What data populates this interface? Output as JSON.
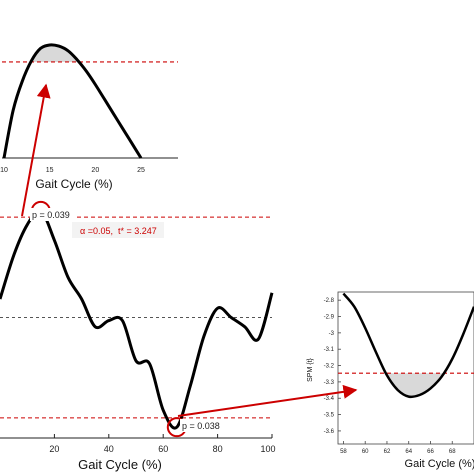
{
  "colors": {
    "curve": "#000000",
    "threshold": "#cc0000",
    "zero_line": "#555555",
    "shade": "#d9d9d9",
    "annotation": "#cc0000"
  },
  "chart_data": [
    {
      "type": "line",
      "name_of_panel": "inset-top",
      "xlabel": "Gait Cycle (%)",
      "ylabel": "",
      "xlim": [
        10,
        25
      ],
      "ylim": [
        0,
        1
      ],
      "xticks": [
        "10",
        "15",
        "20",
        "25"
      ],
      "threshold": 0.85,
      "series": [
        {
          "x": [
            10,
            11,
            12,
            13,
            14,
            15,
            16,
            17,
            18,
            19,
            20,
            21,
            22,
            23,
            24,
            25
          ],
          "y": [
            0.0,
            0.42,
            0.68,
            0.86,
            0.97,
            1.0,
            0.99,
            0.95,
            0.87,
            0.77,
            0.65,
            0.52,
            0.39,
            0.26,
            0.13,
            0.0
          ]
        }
      ]
    },
    {
      "type": "line",
      "name_of_panel": "main",
      "xlabel": "Gait Cycle (%)",
      "ylabel": "",
      "xlim": [
        0,
        100
      ],
      "ylim": [
        -3.9,
        3.9
      ],
      "xticks": [
        "20",
        "40",
        "60",
        "80",
        "100"
      ],
      "threshold_upper": 3.247,
      "threshold_lower": -3.247,
      "annotations": {
        "p_upper": "p = 0.039",
        "p_lower": "p = 0.038",
        "alpha": "α =0.05,",
        "tstar": "t* = 3.247"
      },
      "series": [
        {
          "x": [
            0,
            5,
            10,
            15,
            20,
            25,
            30,
            35,
            40,
            45,
            50,
            55,
            60,
            65,
            70,
            75,
            80,
            85,
            90,
            95,
            100
          ],
          "y": [
            0.6,
            2.0,
            3.0,
            3.45,
            2.5,
            1.3,
            0.6,
            -0.3,
            -0.1,
            -0.1,
            -1.4,
            -1.5,
            -3.0,
            -3.55,
            -2.2,
            -0.6,
            0.3,
            0.0,
            -0.3,
            -0.7,
            0.8
          ]
        }
      ]
    },
    {
      "type": "line",
      "name_of_panel": "inset-bottom-right",
      "xlabel": "Gait Cycle (%)",
      "ylabel": "SPM {t}",
      "xlim": [
        57.5,
        70
      ],
      "ylim": [
        -3.68,
        -2.75
      ],
      "xticks": [
        "58",
        "60",
        "62",
        "64",
        "66",
        "68"
      ],
      "yticks": [
        "-2.8",
        "-2.9",
        "-3",
        "-3.1",
        "-3.2",
        "-3.3",
        "-3.4",
        "-3.5",
        "-3.6"
      ],
      "threshold": -3.247,
      "series": [
        {
          "x": [
            58,
            59,
            60,
            61,
            62,
            63,
            64,
            65,
            66,
            67,
            68,
            69,
            70
          ],
          "y": [
            -2.76,
            -2.84,
            -2.97,
            -3.12,
            -3.26,
            -3.35,
            -3.39,
            -3.38,
            -3.34,
            -3.27,
            -3.16,
            -3.01,
            -2.84
          ]
        }
      ]
    }
  ]
}
